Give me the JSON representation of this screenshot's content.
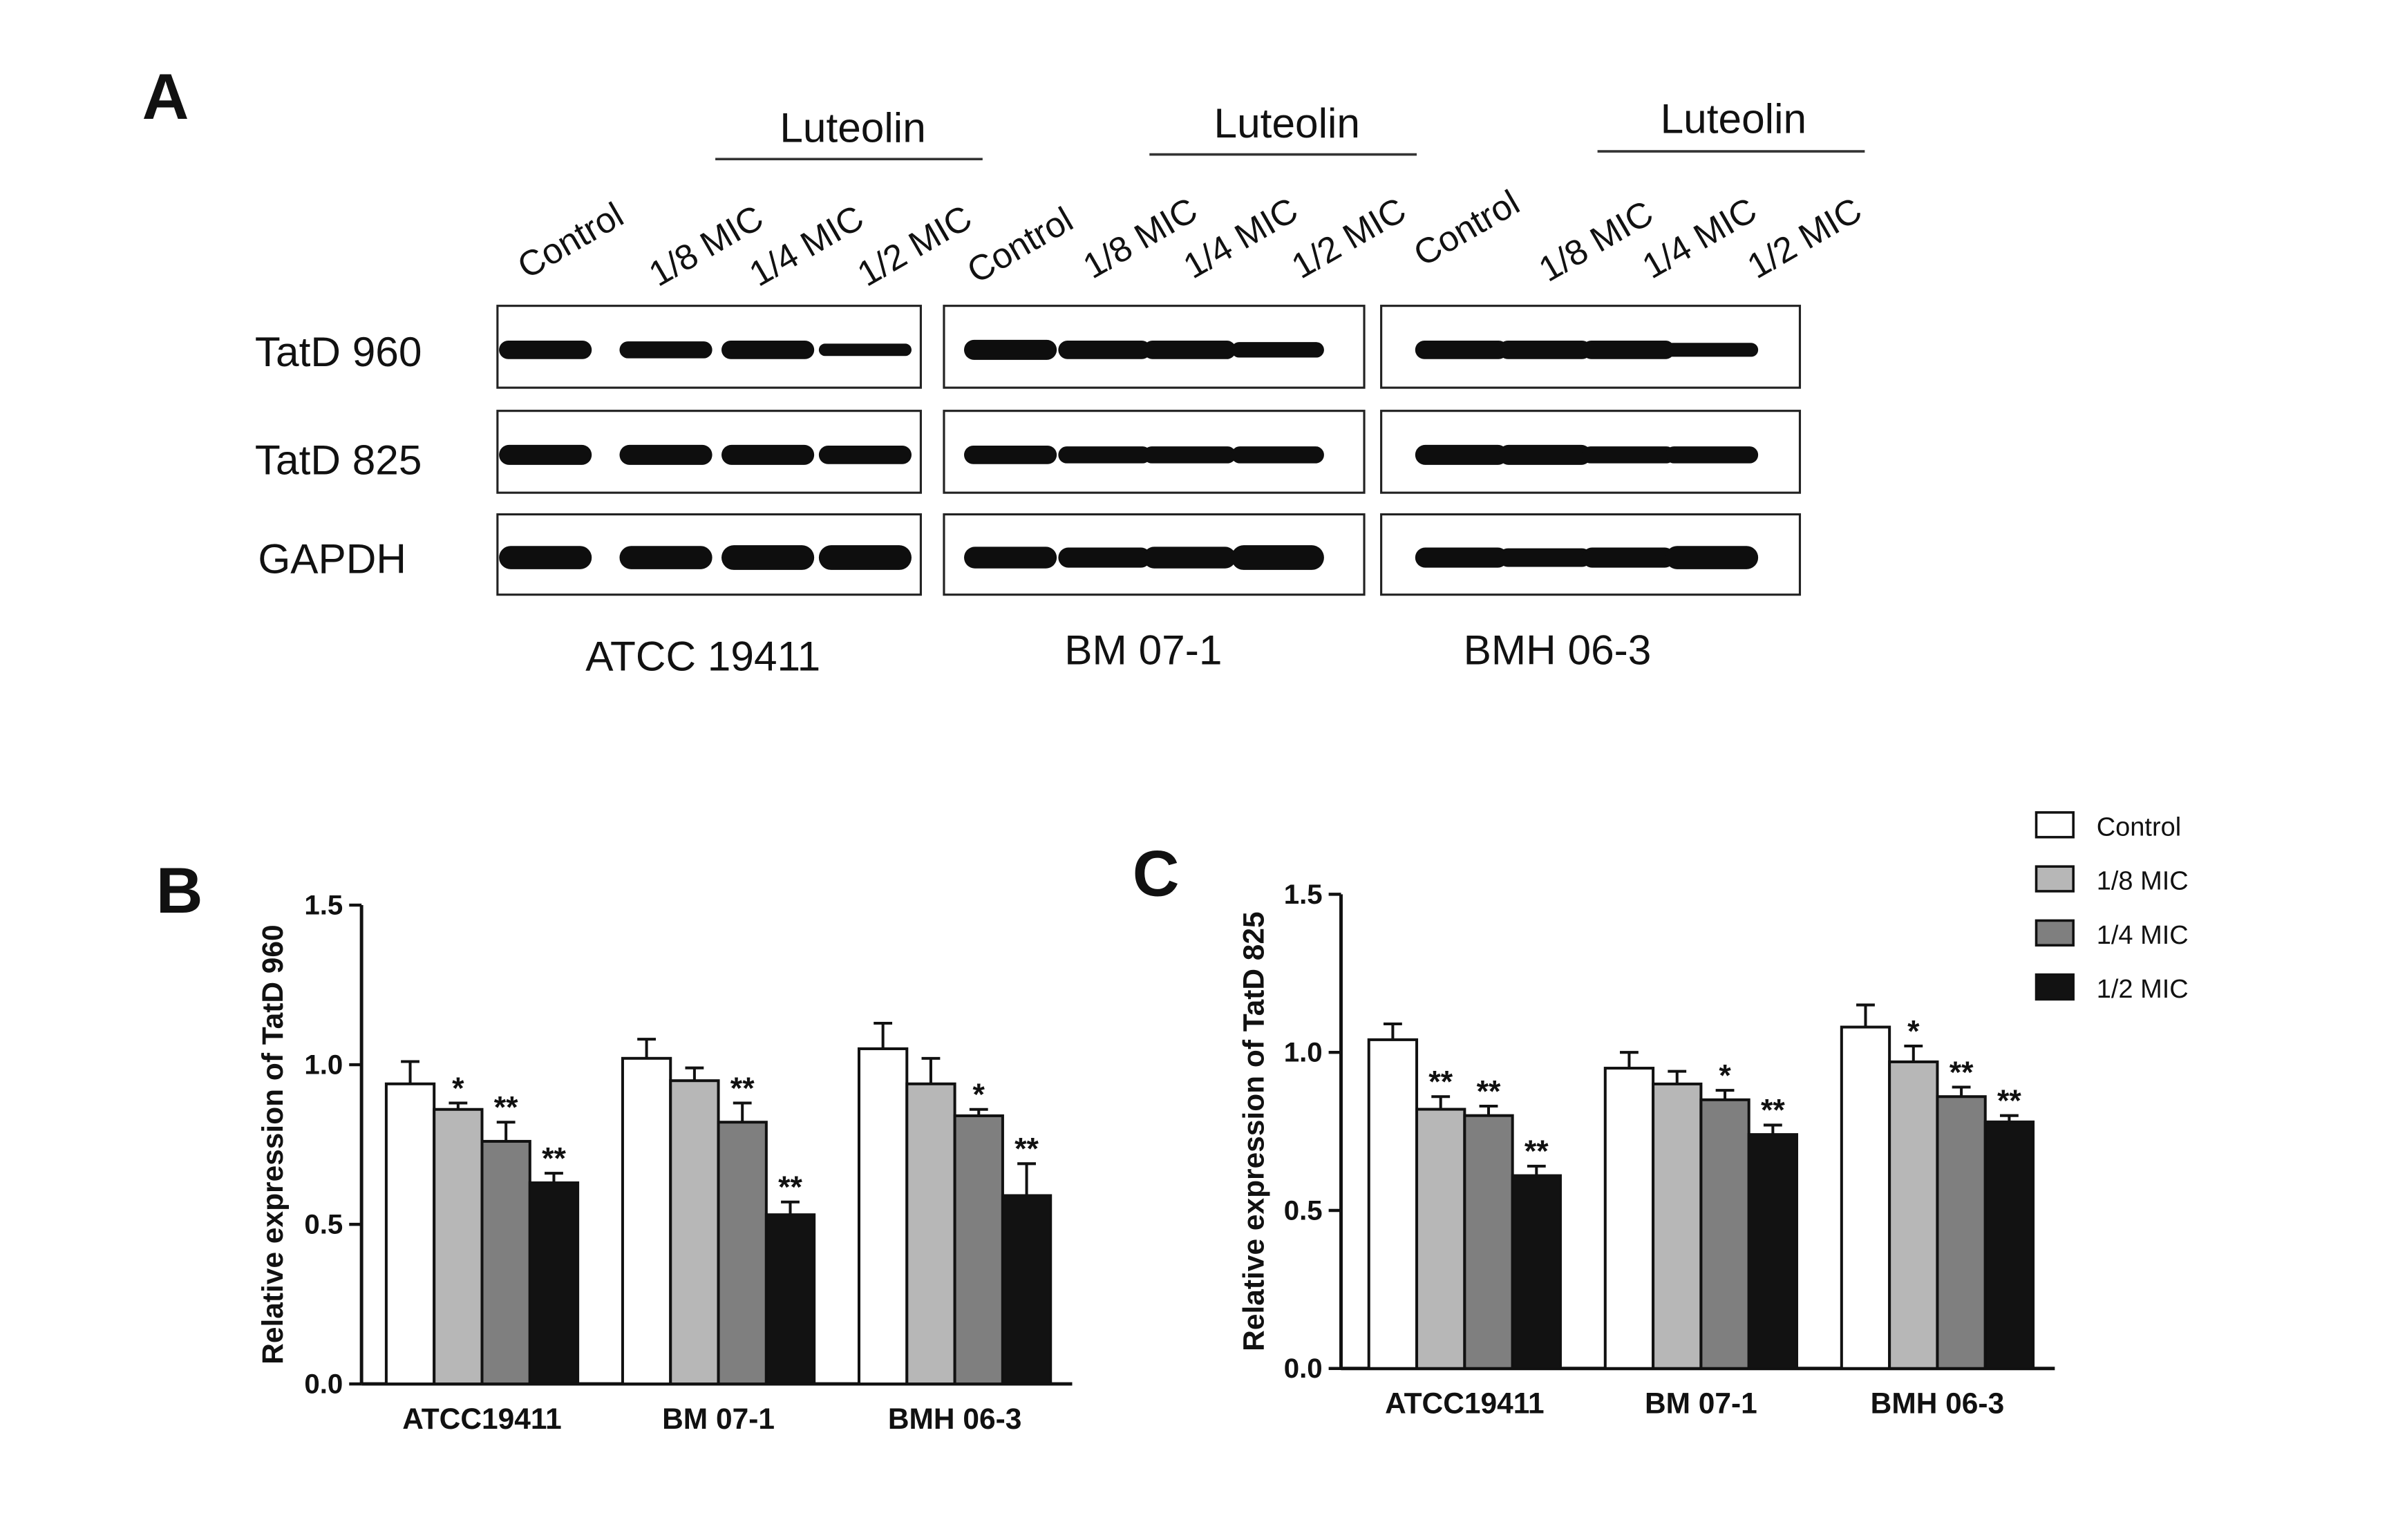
{
  "panel_a": {
    "label": "A",
    "treatment_label": "Luteolin",
    "lane_labels": [
      "Control",
      "1/8 MIC",
      "1/4 MIC",
      "1/2 MIC"
    ],
    "blot_rows": [
      "TatD 960",
      "TatD 825",
      "GAPDH"
    ],
    "strains": [
      "ATCC 19411",
      "BM 07-1",
      "BMH 06-3"
    ]
  },
  "legend": {
    "entries": [
      "Control",
      "1/8 MIC",
      "1/4 MIC",
      "1/2 MIC"
    ],
    "colors": [
      "#ffffff",
      "#b7b7b7",
      "#7f7f7f",
      "#121212"
    ]
  },
  "chart_data": [
    {
      "panel": "B",
      "type": "bar",
      "xlabel": "",
      "ylabel": "Relative expression of TatD 960",
      "ylim": [
        0,
        1.5
      ],
      "yticks": [
        "0.0",
        "0.5",
        "1.0",
        "1.5"
      ],
      "categories": [
        "ATCC19411",
        "BM 07-1",
        "BMH 06-3"
      ],
      "series": [
        {
          "name": "Control",
          "values": [
            0.94,
            1.02,
            1.05
          ],
          "errors": [
            0.07,
            0.06,
            0.08
          ],
          "sig": [
            "",
            "",
            ""
          ]
        },
        {
          "name": "1/8 MIC",
          "values": [
            0.86,
            0.95,
            0.94
          ],
          "errors": [
            0.02,
            0.04,
            0.08
          ],
          "sig": [
            "*",
            "",
            ""
          ]
        },
        {
          "name": "1/4 MIC",
          "values": [
            0.76,
            0.82,
            0.84
          ],
          "errors": [
            0.06,
            0.06,
            0.02
          ],
          "sig": [
            "**",
            "**",
            "*"
          ]
        },
        {
          "name": "1/2 MIC",
          "values": [
            0.63,
            0.53,
            0.59
          ],
          "errors": [
            0.03,
            0.04,
            0.1
          ],
          "sig": [
            "**",
            "**",
            "**"
          ]
        }
      ]
    },
    {
      "panel": "C",
      "type": "bar",
      "xlabel": "",
      "ylabel": "Relative expression of TatD 825",
      "ylim": [
        0,
        1.5
      ],
      "yticks": [
        "0.0",
        "0.5",
        "1.0",
        "1.5"
      ],
      "categories": [
        "ATCC19411",
        "BM 07-1",
        "BMH 06-3"
      ],
      "series": [
        {
          "name": "Control",
          "values": [
            1.04,
            0.95,
            1.08
          ],
          "errors": [
            0.05,
            0.05,
            0.07
          ],
          "sig": [
            "",
            "",
            ""
          ]
        },
        {
          "name": "1/8 MIC",
          "values": [
            0.82,
            0.9,
            0.97
          ],
          "errors": [
            0.04,
            0.04,
            0.05
          ],
          "sig": [
            "**",
            "",
            "*"
          ]
        },
        {
          "name": "1/4 MIC",
          "values": [
            0.8,
            0.85,
            0.86
          ],
          "errors": [
            0.03,
            0.03,
            0.03
          ],
          "sig": [
            "**",
            "*",
            "**"
          ]
        },
        {
          "name": "1/2 MIC",
          "values": [
            0.61,
            0.74,
            0.78
          ],
          "errors": [
            0.03,
            0.03,
            0.02
          ],
          "sig": [
            "**",
            "**",
            "**"
          ]
        }
      ]
    }
  ]
}
